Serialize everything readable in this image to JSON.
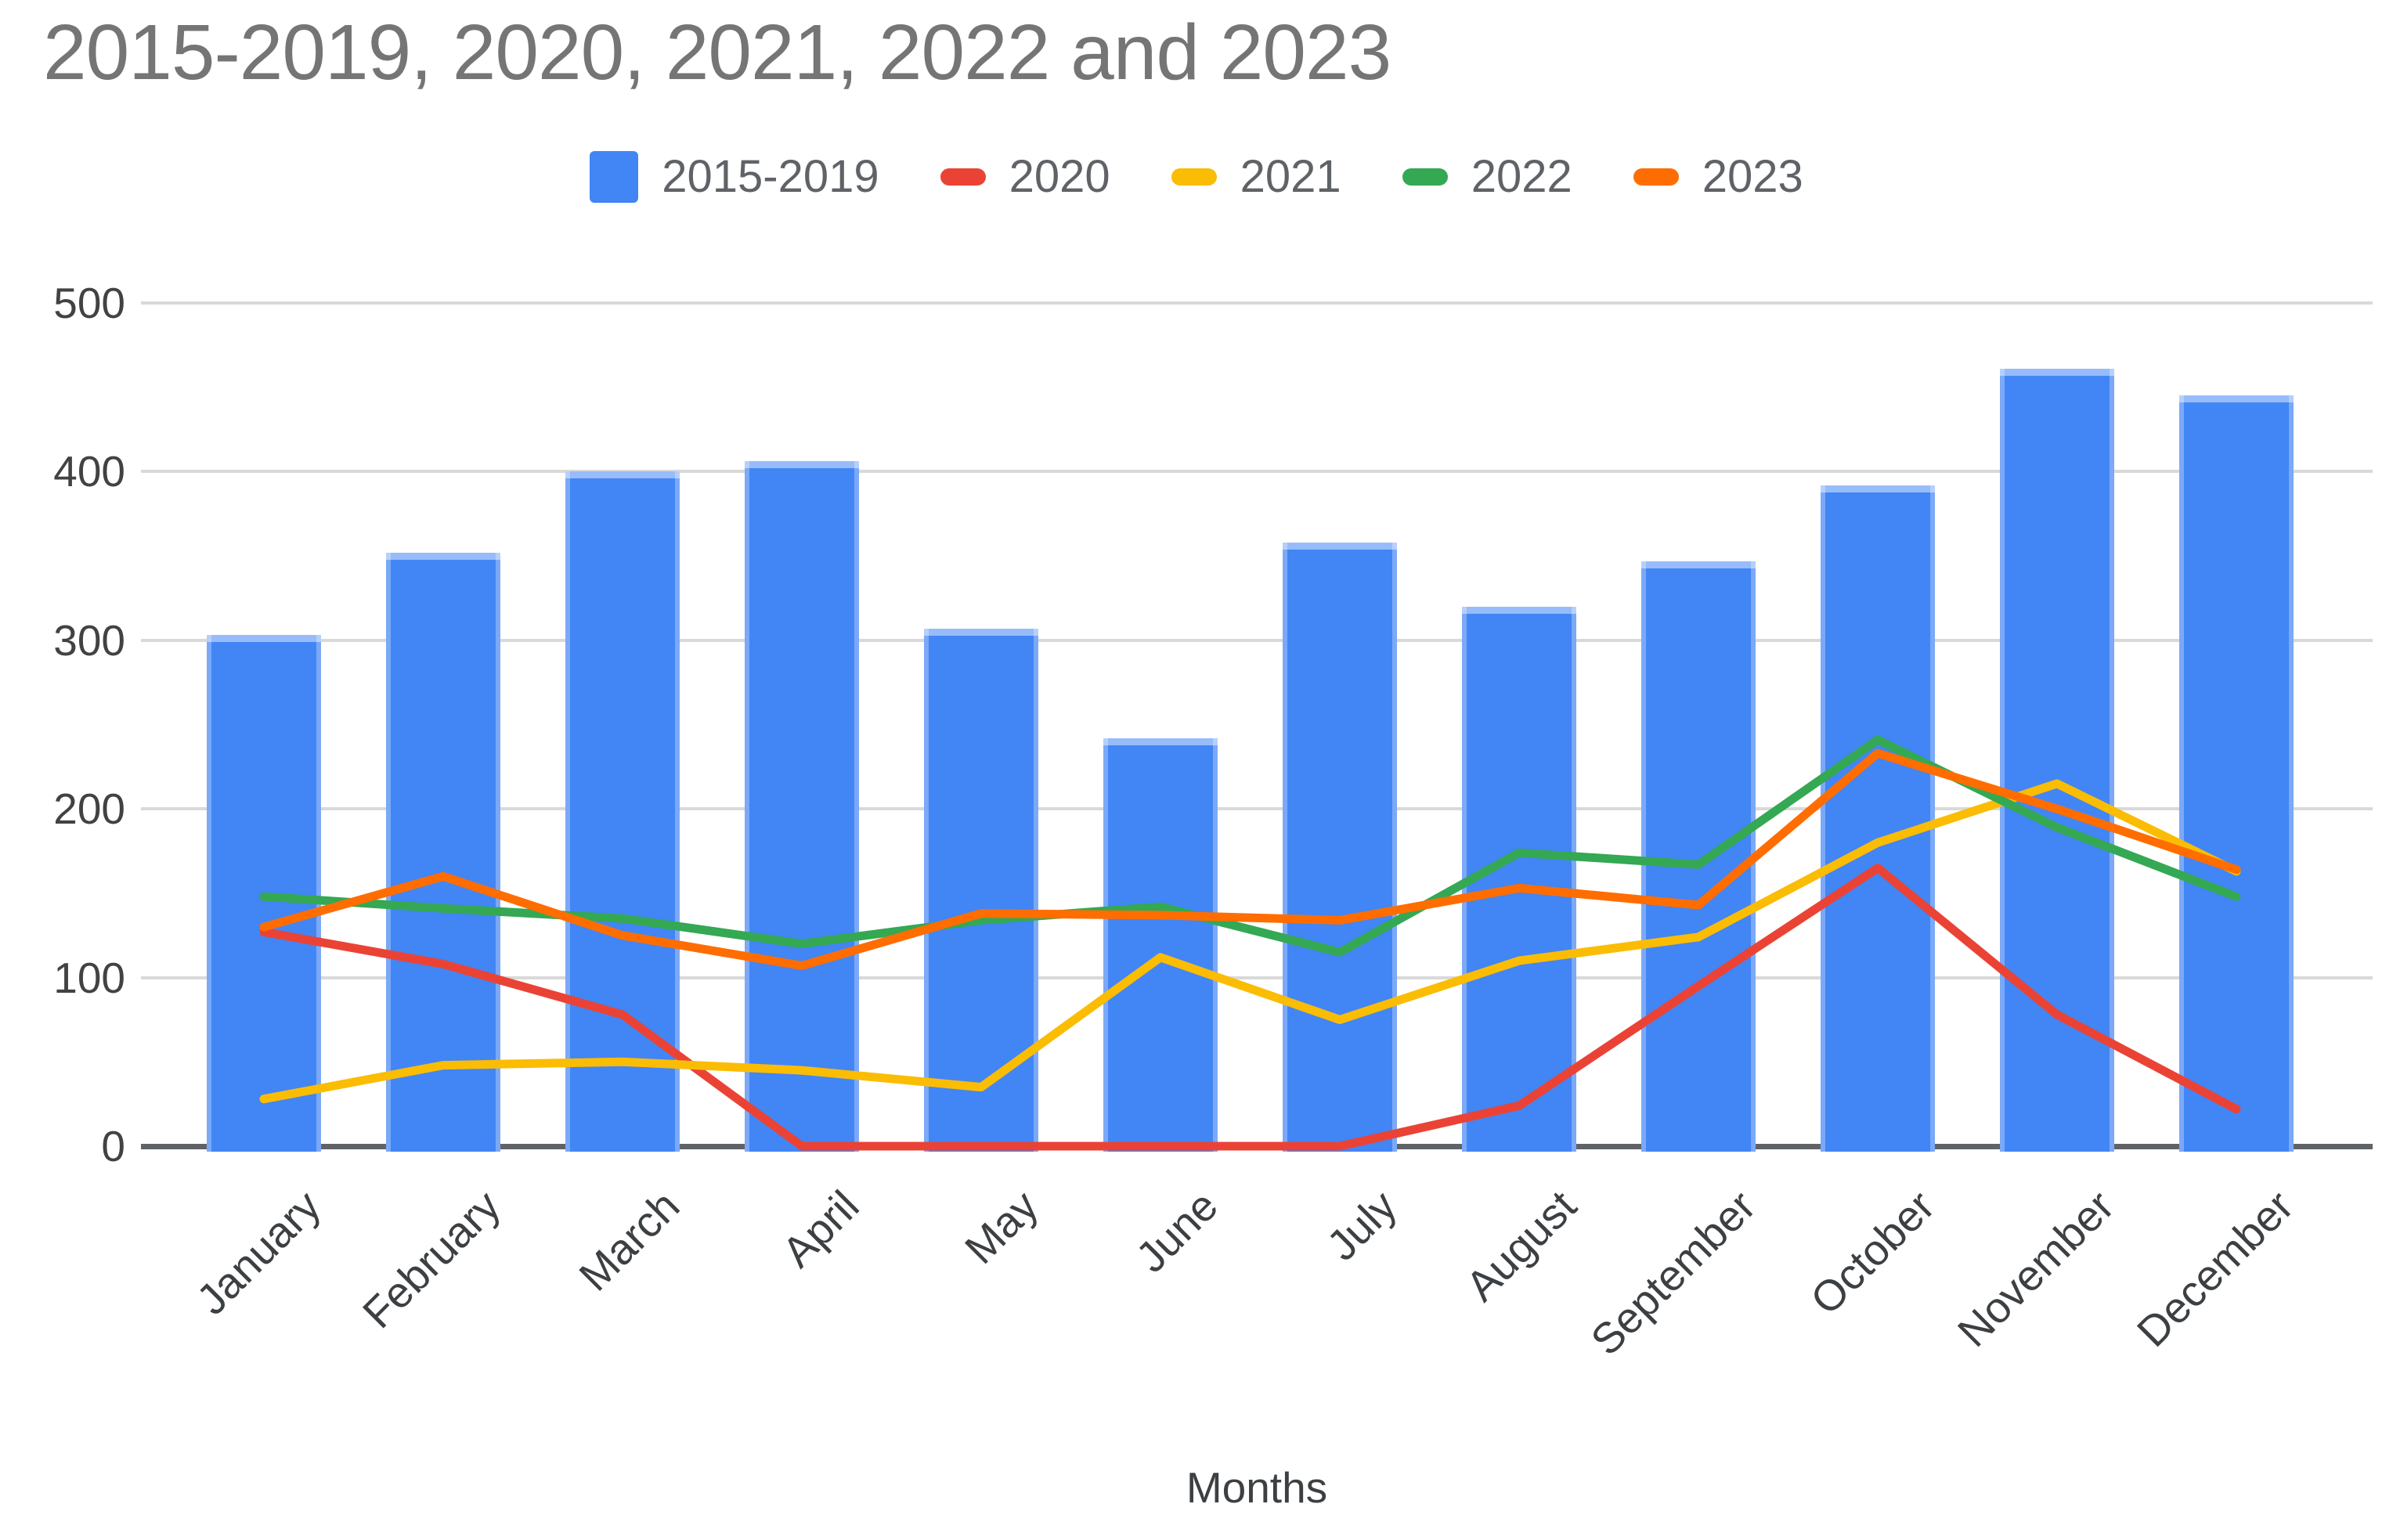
{
  "title": "2015-2019, 2020, 2021, 2022 and 2023",
  "chart_data": {
    "type": "bar",
    "subtype": "combo-bar-and-lines",
    "title": "2015-2019, 2020, 2021, 2022 and 2023",
    "xlabel": "Months",
    "ylabel": "",
    "ylim": [
      0,
      500
    ],
    "yticks": [
      0,
      100,
      200,
      300,
      400,
      500
    ],
    "grid": true,
    "legend_position": "top",
    "categories": [
      "January",
      "February",
      "March",
      "April",
      "May",
      "June",
      "July",
      "August",
      "September",
      "October",
      "November",
      "December"
    ],
    "series": [
      {
        "name": "2015-2019",
        "type": "bar",
        "color": "#4285F4",
        "values": [
          303,
          352,
          400,
          406,
          307,
          242,
          358,
          320,
          347,
          392,
          461,
          445
        ]
      },
      {
        "name": "2020",
        "type": "line",
        "color": "#EA4335",
        "values": [
          127,
          108,
          78,
          0,
          0,
          0,
          0,
          24,
          95,
          165,
          78,
          22
        ]
      },
      {
        "name": "2021",
        "type": "line",
        "color": "#FBBC04",
        "values": [
          28,
          48,
          50,
          45,
          35,
          112,
          75,
          110,
          124,
          180,
          215,
          163
        ]
      },
      {
        "name": "2022",
        "type": "line",
        "color": "#34A853",
        "values": [
          148,
          141,
          135,
          120,
          134,
          142,
          115,
          174,
          167,
          241,
          189,
          148
        ]
      },
      {
        "name": "2023",
        "type": "line",
        "color": "#FF6D01",
        "values": [
          130,
          160,
          125,
          107,
          138,
          137,
          134,
          153,
          143,
          233,
          200,
          164
        ]
      }
    ]
  }
}
